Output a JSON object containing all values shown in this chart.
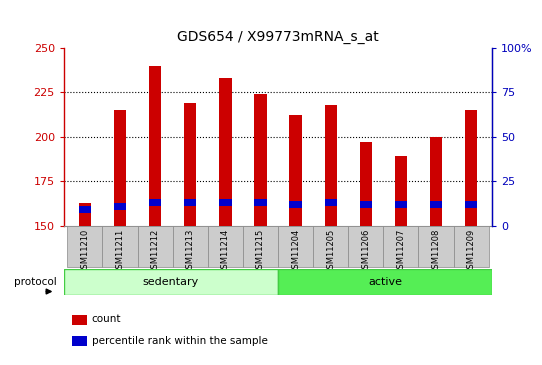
{
  "title": "GDS654 / X99773mRNA_s_at",
  "samples": [
    "GSM11210",
    "GSM11211",
    "GSM11212",
    "GSM11213",
    "GSM11214",
    "GSM11215",
    "GSM11204",
    "GSM11205",
    "GSM11206",
    "GSM11207",
    "GSM11208",
    "GSM11209"
  ],
  "counts": [
    163,
    215,
    240,
    219,
    233,
    224,
    212,
    218,
    197,
    189,
    200,
    215
  ],
  "percentile_bottoms": [
    157,
    159,
    161,
    161,
    161,
    161,
    160,
    161,
    160,
    160,
    160,
    160
  ],
  "percentile_heights": [
    4,
    4,
    4,
    4,
    4,
    4,
    4,
    4,
    4,
    4,
    4,
    4
  ],
  "bar_bottom": 150,
  "ylim_left": [
    150,
    250
  ],
  "ylim_right": [
    0,
    100
  ],
  "yticks_left": [
    150,
    175,
    200,
    225,
    250
  ],
  "yticks_right": [
    0,
    25,
    50,
    75,
    100
  ],
  "ytick_labels_right": [
    "0",
    "25",
    "50",
    "75",
    "100%"
  ],
  "gridlines": [
    175,
    200,
    225
  ],
  "groups": [
    {
      "label": "sedentary",
      "start": 0,
      "end": 6,
      "color": "#ccffcc",
      "border": "#44cc44"
    },
    {
      "label": "active",
      "start": 6,
      "end": 12,
      "color": "#55ee55",
      "border": "#44cc44"
    }
  ],
  "protocol_label": "protocol",
  "bar_color": "#cc0000",
  "percentile_color": "#0000cc",
  "grid_color": "#000000",
  "axis_left_color": "#cc0000",
  "axis_right_color": "#0000bb",
  "background_color": "#ffffff",
  "tick_area_color": "#cccccc",
  "legend_items": [
    {
      "label": "count",
      "color": "#cc0000"
    },
    {
      "label": "percentile rank within the sample",
      "color": "#0000cc"
    }
  ],
  "bar_width": 0.35
}
